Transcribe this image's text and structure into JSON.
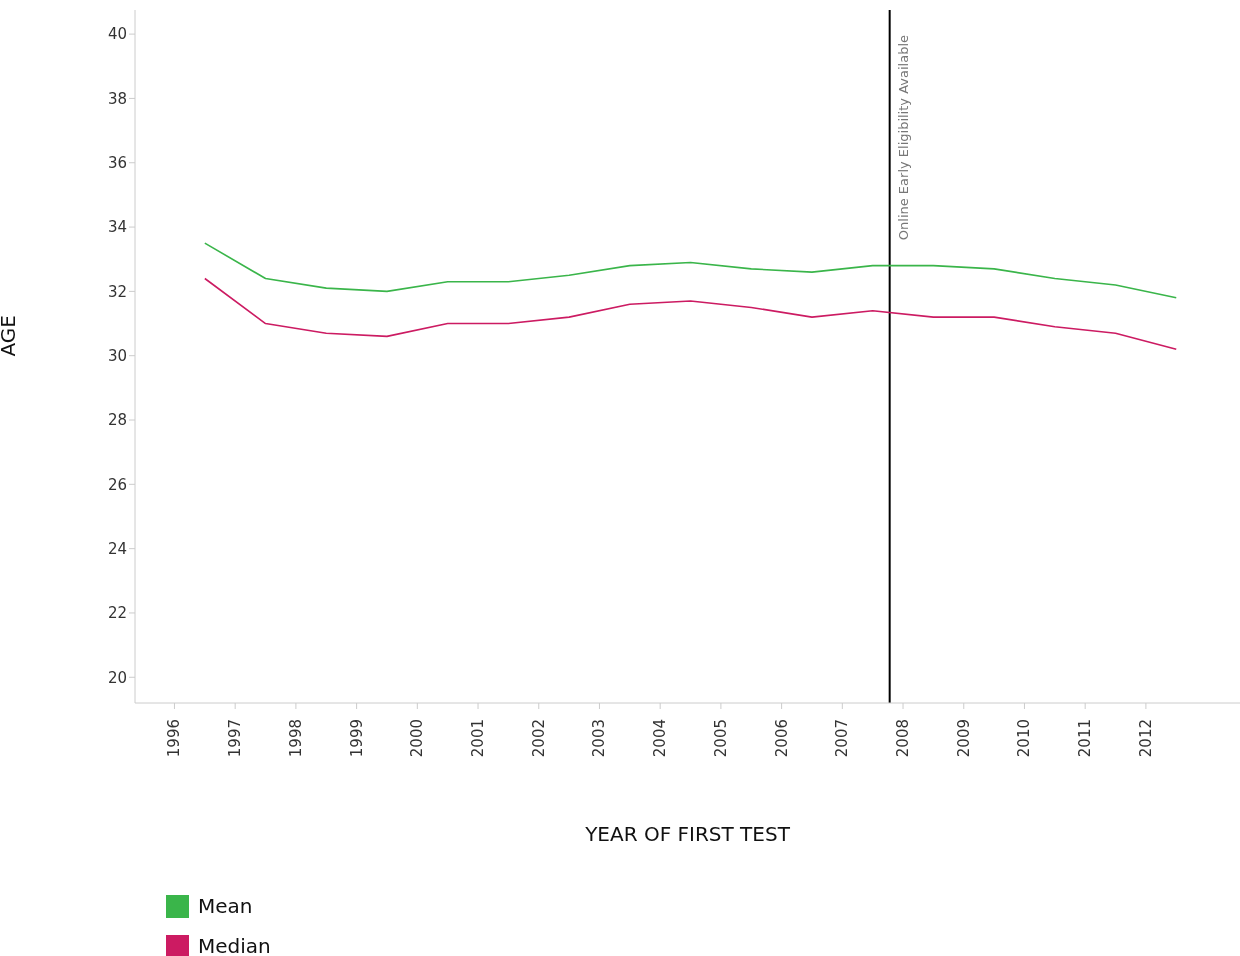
{
  "chart_data": {
    "type": "line",
    "xlabel": "YEAR OF FIRST TEST",
    "ylabel": "AGE",
    "x": [
      1996.5,
      1997.5,
      1998.5,
      1999.5,
      2000.5,
      2001.5,
      2002.5,
      2003.5,
      2004.5,
      2005.5,
      2006.5,
      2007.5,
      2008.5,
      2009.5,
      2010.5,
      2011.5,
      2012.5
    ],
    "series": [
      {
        "name": "Mean",
        "color": "#3ab54a",
        "values": [
          33.5,
          32.4,
          32.1,
          32.0,
          32.3,
          32.3,
          32.5,
          32.8,
          32.9,
          32.7,
          32.6,
          32.8,
          32.8,
          32.7,
          32.4,
          32.2,
          31.8
        ]
      },
      {
        "name": "Median",
        "color": "#cc1b62",
        "values": [
          32.4,
          31.0,
          30.7,
          30.6,
          31.0,
          31.0,
          31.2,
          31.6,
          31.7,
          31.5,
          31.2,
          31.4,
          31.2,
          31.2,
          30.9,
          30.7,
          30.2
        ]
      }
    ],
    "xlim": [
      1995.35,
      2013.55
    ],
    "xticks": [
      1996,
      1997,
      1998,
      1999,
      2000,
      2001,
      2002,
      2003,
      2004,
      2005,
      2006,
      2007,
      2008,
      2009,
      2010,
      2011,
      2012
    ],
    "ylim": [
      19.2,
      40.75
    ],
    "yticks": [
      20,
      22,
      24,
      26,
      28,
      30,
      32,
      34,
      36,
      38,
      40
    ],
    "ref_lines": [
      {
        "axis": "x",
        "value": 2007.78,
        "label": "Online Early Eligibility Available",
        "color": "#000000"
      }
    ],
    "grid": false,
    "legend": "bottom left",
    "marker": "none",
    "line_style": "solid"
  }
}
